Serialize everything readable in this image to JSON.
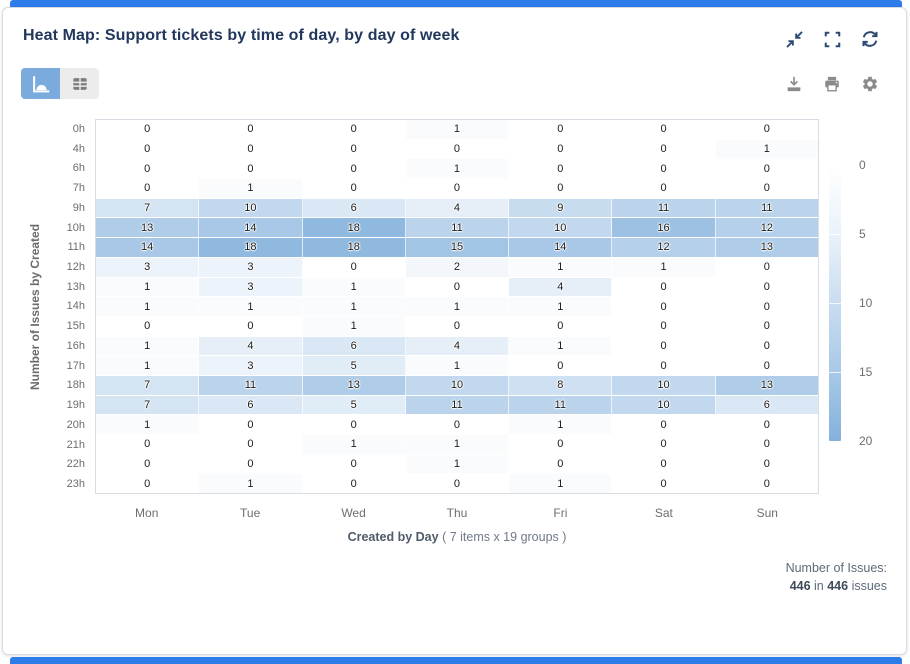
{
  "header": {
    "title": "Heat Map: Support tickets by time of day, by day of week",
    "icons": [
      "collapse-icon",
      "fullscreen-icon",
      "refresh-icon"
    ]
  },
  "toolbar": {
    "view_toggle": {
      "chart_view": "chart-view-icon",
      "table_view": "table-view-icon",
      "active": "chart"
    },
    "icons": [
      "download-icon",
      "print-icon",
      "settings-gear-icon"
    ]
  },
  "chart_data": {
    "type": "heatmap",
    "title": "Heat Map: Support tickets by time of day, by day of week",
    "x_categories": [
      "Mon",
      "Tue",
      "Wed",
      "Thu",
      "Fri",
      "Sat",
      "Sun"
    ],
    "y_categories": [
      "0h",
      "4h",
      "6h",
      "7h",
      "9h",
      "10h",
      "11h",
      "12h",
      "13h",
      "14h",
      "15h",
      "16h",
      "17h",
      "18h",
      "19h",
      "20h",
      "21h",
      "22h",
      "23h"
    ],
    "values": [
      [
        0,
        0,
        0,
        1,
        0,
        0,
        0
      ],
      [
        0,
        0,
        0,
        0,
        0,
        0,
        1
      ],
      [
        0,
        0,
        0,
        1,
        0,
        0,
        0
      ],
      [
        0,
        1,
        0,
        0,
        0,
        0,
        0
      ],
      [
        7,
        10,
        6,
        4,
        9,
        11,
        11
      ],
      [
        13,
        14,
        18,
        11,
        10,
        16,
        12
      ],
      [
        14,
        18,
        18,
        15,
        14,
        12,
        13
      ],
      [
        3,
        3,
        0,
        2,
        1,
        1,
        0
      ],
      [
        1,
        3,
        1,
        0,
        4,
        0,
        0
      ],
      [
        1,
        1,
        1,
        1,
        1,
        0,
        0
      ],
      [
        0,
        0,
        1,
        0,
        0,
        0,
        0
      ],
      [
        1,
        4,
        6,
        4,
        1,
        0,
        0
      ],
      [
        1,
        3,
        5,
        1,
        0,
        0,
        0
      ],
      [
        7,
        11,
        13,
        10,
        8,
        10,
        13
      ],
      [
        7,
        6,
        5,
        11,
        11,
        10,
        6
      ],
      [
        1,
        0,
        0,
        0,
        1,
        0,
        0
      ],
      [
        0,
        0,
        1,
        1,
        0,
        0,
        0
      ],
      [
        0,
        0,
        0,
        1,
        0,
        0,
        0
      ],
      [
        0,
        1,
        0,
        0,
        1,
        0,
        0
      ]
    ],
    "xlabel": "Created by Day",
    "xlabel_suffix": " ( 7 items x 19 groups )",
    "ylabel": "Number of Issues by Created",
    "legend_ticks": [
      0,
      5,
      10,
      15,
      20
    ],
    "legend_position": "right",
    "color_scale": {
      "min": 0,
      "max": 20,
      "min_color": "#ffffff",
      "max_color": "#84b1dc"
    },
    "grid": false
  },
  "summary": {
    "label": "Number of Issues:",
    "value": "446",
    "middle": " in ",
    "total": "446",
    "suffix": " issues"
  },
  "colors": {
    "accent": "#2e7bea",
    "icon_navy": "#2d4a73",
    "title_text": "#22375c",
    "icon_gray": "#8b8b8b",
    "axis_label": "#6e6e6e",
    "heat_max": "#84b1dc",
    "card_border": "#d7dce2",
    "toggle_active_bg": "#7babdd",
    "toggle_inactive_bg": "#ececec"
  }
}
